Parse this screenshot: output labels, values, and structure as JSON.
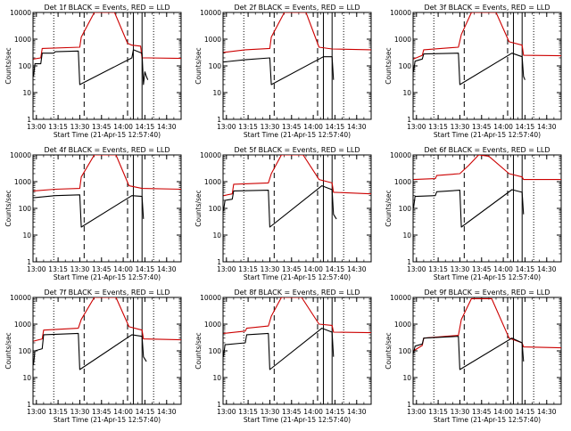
{
  "chart_data": [
    {
      "type": "line",
      "title": "Det 1f BLACK = Events, RED = LLD",
      "xlabel": "Start Time (21-Apr-15 12:57:40)",
      "ylabel": "Counts/sec",
      "x_ticks": [
        "13:00",
        "13:15",
        "13:30",
        "13:45",
        "14:00",
        "14:15",
        "14:30"
      ],
      "y_ticks": [
        "1",
        "10",
        "100",
        "1000",
        "10000"
      ],
      "ylim": [
        1,
        10000
      ],
      "y_scale": "log",
      "series": [
        {
          "color": "#000000",
          "points": [
            [
              "12:58",
              40
            ],
            [
              "12:59",
              120
            ],
            [
              "13:03",
              120
            ],
            [
              "13:04",
              300
            ],
            [
              "13:12",
              300
            ],
            [
              "13:13",
              340
            ],
            [
              "13:29",
              360
            ],
            [
              "13:30",
              20
            ],
            [
              "14:06",
              200
            ],
            [
              "14:07",
              400
            ],
            [
              "14:13",
              300
            ],
            [
              "14:14",
              20
            ],
            [
              "14:15",
              60
            ],
            [
              "14:16",
              40
            ],
            [
              "14:17",
              30
            ]
          ]
        },
        {
          "color": "#cc0000",
          "points": [
            [
              "12:58",
              180
            ],
            [
              "13:03",
              200
            ],
            [
              "13:04",
              450
            ],
            [
              "13:30",
              500
            ],
            [
              "13:31",
              1200
            ],
            [
              "13:40",
              10000
            ],
            [
              "13:54",
              10000
            ],
            [
              "14:03",
              700
            ],
            [
              "14:06",
              600
            ],
            [
              "14:12",
              550
            ],
            [
              "14:13",
              200
            ],
            [
              "14:17",
              200
            ],
            [
              "14:40",
              190
            ]
          ]
        }
      ]
    },
    {
      "type": "line",
      "title": "Det 2f BLACK = Events, RED = LLD",
      "xlabel": "Start Time (21-Apr-15 12:57:40)",
      "ylabel": "Counts/sec",
      "x_ticks": [
        "13:00",
        "13:15",
        "13:30",
        "13:45",
        "14:00",
        "14:15",
        "14:30"
      ],
      "y_ticks": [
        "1",
        "10",
        "100",
        "1000",
        "10000"
      ],
      "ylim": [
        1,
        10000
      ],
      "y_scale": "log",
      "series": [
        {
          "color": "#000000",
          "points": [
            [
              "12:58",
              140
            ],
            [
              "13:13",
              170
            ],
            [
              "13:30",
              200
            ],
            [
              "13:31",
              20
            ],
            [
              "14:07",
              220
            ],
            [
              "14:13",
              220
            ],
            [
              "14:14",
              30
            ]
          ]
        },
        {
          "color": "#cc0000",
          "points": [
            [
              "12:58",
              320
            ],
            [
              "13:13",
              400
            ],
            [
              "13:30",
              450
            ],
            [
              "13:31",
              1200
            ],
            [
              "13:40",
              10000
            ],
            [
              "13:55",
              10000
            ],
            [
              "14:04",
              500
            ],
            [
              "14:13",
              430
            ],
            [
              "14:40",
              400
            ]
          ]
        }
      ]
    },
    {
      "type": "line",
      "title": "Det 3f BLACK = Events, RED = LLD",
      "xlabel": "Start Time (21-Apr-15 12:57:40)",
      "ylabel": "Counts/sec",
      "x_ticks": [
        "13:00",
        "13:15",
        "13:30",
        "13:45",
        "14:00",
        "14:15",
        "14:30"
      ],
      "y_ticks": [
        "1",
        "10",
        "100",
        "1000",
        "10000"
      ],
      "ylim": [
        1,
        10000
      ],
      "y_scale": "log",
      "series": [
        {
          "color": "#000000",
          "points": [
            [
              "12:58",
              60
            ],
            [
              "12:59",
              150
            ],
            [
              "13:04",
              180
            ],
            [
              "13:05",
              280
            ],
            [
              "13:29",
              300
            ],
            [
              "13:30",
              20
            ],
            [
              "14:06",
              300
            ],
            [
              "14:13",
              220
            ],
            [
              "14:14",
              40
            ],
            [
              "14:15",
              30
            ]
          ]
        },
        {
          "color": "#cc0000",
          "points": [
            [
              "12:58",
              180
            ],
            [
              "13:04",
              250
            ],
            [
              "13:05",
              400
            ],
            [
              "13:29",
              500
            ],
            [
              "13:31",
              1500
            ],
            [
              "13:38",
              10000
            ],
            [
              "13:55",
              10000
            ],
            [
              "14:04",
              800
            ],
            [
              "14:13",
              600
            ],
            [
              "14:14",
              250
            ],
            [
              "14:40",
              240
            ]
          ]
        }
      ]
    },
    {
      "type": "line",
      "title": "Det 4f BLACK = Events, RED = LLD",
      "xlabel": "Start Time (21-Apr-15 12:57:40)",
      "ylabel": "Counts/sec",
      "x_ticks": [
        "13:00",
        "13:15",
        "13:30",
        "13:45",
        "14:00",
        "14:15",
        "14:30"
      ],
      "y_ticks": [
        "1",
        "10",
        "100",
        "1000",
        "10000"
      ],
      "ylim": [
        1,
        10000
      ],
      "y_scale": "log",
      "series": [
        {
          "color": "#000000",
          "points": [
            [
              "12:58",
              250
            ],
            [
              "13:13",
              300
            ],
            [
              "13:30",
              320
            ],
            [
              "13:31",
              20
            ],
            [
              "14:06",
              300
            ],
            [
              "14:13",
              280
            ],
            [
              "14:14",
              40
            ]
          ]
        },
        {
          "color": "#cc0000",
          "points": [
            [
              "12:58",
              450
            ],
            [
              "13:13",
              520
            ],
            [
              "13:30",
              560
            ],
            [
              "13:31",
              1500
            ],
            [
              "13:40",
              10000
            ],
            [
              "13:55",
              10000
            ],
            [
              "14:04",
              700
            ],
            [
              "14:13",
              560
            ],
            [
              "14:40",
              520
            ]
          ]
        }
      ]
    },
    {
      "type": "line",
      "title": "Det 5f BLACK = Events, RED = LLD",
      "xlabel": "Start Time (21-Apr-15 12:57:40)",
      "ylabel": "Counts/sec",
      "x_ticks": [
        "13:00",
        "13:15",
        "13:30",
        "13:45",
        "14:00",
        "14:15",
        "14:30"
      ],
      "y_ticks": [
        "1",
        "10",
        "100",
        "1000",
        "10000"
      ],
      "ylim": [
        1,
        10000
      ],
      "y_scale": "log",
      "series": [
        {
          "color": "#000000",
          "points": [
            [
              "12:58",
              80
            ],
            [
              "12:59",
              200
            ],
            [
              "13:04",
              220
            ],
            [
              "13:05",
              450
            ],
            [
              "13:29",
              480
            ],
            [
              "13:30",
              20
            ],
            [
              "14:06",
              700
            ],
            [
              "14:13",
              500
            ],
            [
              "14:14",
              60
            ],
            [
              "14:16",
              40
            ]
          ]
        },
        {
          "color": "#cc0000",
          "points": [
            [
              "12:58",
              300
            ],
            [
              "13:04",
              350
            ],
            [
              "13:05",
              800
            ],
            [
              "13:29",
              900
            ],
            [
              "13:31",
              2000
            ],
            [
              "13:38",
              10000
            ],
            [
              "13:53",
              10000
            ],
            [
              "14:04",
              1200
            ],
            [
              "14:13",
              900
            ],
            [
              "14:14",
              400
            ],
            [
              "14:40",
              350
            ]
          ]
        }
      ]
    },
    {
      "type": "line",
      "title": "Det 6f BLACK = Events, RED = LLD",
      "xlabel": "Start Time (21-Apr-15 12:57:40)",
      "ylabel": "Counts/sec",
      "x_ticks": [
        "13:00",
        "13:15",
        "13:30",
        "13:45",
        "14:00",
        "14:15",
        "14:30"
      ],
      "y_ticks": [
        "1",
        "10",
        "100",
        "1000",
        "10000"
      ],
      "ylim": [
        1,
        10000
      ],
      "y_scale": "log",
      "series": [
        {
          "color": "#000000",
          "points": [
            [
              "12:58",
              100
            ],
            [
              "12:59",
              280
            ],
            [
              "13:13",
              300
            ],
            [
              "13:14",
              420
            ],
            [
              "13:30",
              480
            ],
            [
              "13:31",
              20
            ],
            [
              "14:06",
              500
            ],
            [
              "14:13",
              400
            ],
            [
              "14:14",
              60
            ]
          ]
        },
        {
          "color": "#cc0000",
          "points": [
            [
              "12:58",
              1200
            ],
            [
              "13:13",
              1300
            ],
            [
              "13:14",
              1700
            ],
            [
              "13:30",
              2000
            ],
            [
              "13:36",
              4000
            ],
            [
              "13:43",
              10000
            ],
            [
              "13:50",
              9000
            ],
            [
              "14:04",
              2000
            ],
            [
              "14:13",
              1500
            ],
            [
              "14:14",
              1200
            ],
            [
              "14:40",
              1200
            ]
          ]
        }
      ]
    },
    {
      "type": "line",
      "title": "Det 7f BLACK = Events, RED = LLD",
      "xlabel": "Start Time (21-Apr-15 12:57:40)",
      "ylabel": "Counts/sec",
      "x_ticks": [
        "13:00",
        "13:15",
        "13:30",
        "13:45",
        "14:00",
        "14:15",
        "14:30"
      ],
      "y_ticks": [
        "1",
        "10",
        "100",
        "1000",
        "10000"
      ],
      "ylim": [
        1,
        10000
      ],
      "y_scale": "log",
      "series": [
        {
          "color": "#000000",
          "points": [
            [
              "12:58",
              30
            ],
            [
              "12:59",
              100
            ],
            [
              "13:04",
              120
            ],
            [
              "13:05",
              400
            ],
            [
              "13:29",
              450
            ],
            [
              "13:30",
              20
            ],
            [
              "14:06",
              400
            ],
            [
              "14:13",
              350
            ],
            [
              "14:14",
              60
            ],
            [
              "14:16",
              40
            ]
          ]
        },
        {
          "color": "#cc0000",
          "points": [
            [
              "12:58",
              230
            ],
            [
              "13:04",
              280
            ],
            [
              "13:05",
              600
            ],
            [
              "13:29",
              700
            ],
            [
              "13:31",
              1500
            ],
            [
              "13:40",
              10000
            ],
            [
              "13:55",
              10000
            ],
            [
              "14:04",
              800
            ],
            [
              "14:13",
              600
            ],
            [
              "14:14",
              280
            ],
            [
              "14:40",
              260
            ]
          ]
        }
      ]
    },
    {
      "type": "line",
      "title": "Det 8f BLACK = Events, RED = LLD",
      "xlabel": "Start Time (21-Apr-15 12:57:40)",
      "ylabel": "Counts/sec",
      "x_ticks": [
        "13:00",
        "13:15",
        "13:30",
        "13:45",
        "14:00",
        "14:15",
        "14:30"
      ],
      "y_ticks": [
        "1",
        "10",
        "100",
        "1000",
        "10000"
      ],
      "ylim": [
        1,
        10000
      ],
      "y_scale": "log",
      "series": [
        {
          "color": "#000000",
          "points": [
            [
              "12:58",
              60
            ],
            [
              "12:59",
              170
            ],
            [
              "13:13",
              200
            ],
            [
              "13:14",
              400
            ],
            [
              "13:29",
              450
            ],
            [
              "13:30",
              20
            ],
            [
              "14:06",
              700
            ],
            [
              "14:13",
              500
            ],
            [
              "14:14",
              60
            ]
          ]
        },
        {
          "color": "#cc0000",
          "points": [
            [
              "12:58",
              450
            ],
            [
              "13:13",
              550
            ],
            [
              "13:14",
              700
            ],
            [
              "13:29",
              850
            ],
            [
              "13:31",
              2000
            ],
            [
              "13:38",
              10000
            ],
            [
              "13:52",
              10000
            ],
            [
              "14:04",
              1000
            ],
            [
              "14:13",
              900
            ],
            [
              "14:14",
              500
            ],
            [
              "14:40",
              480
            ]
          ]
        }
      ]
    },
    {
      "type": "line",
      "title": "Det 9f BLACK = Events, RED = LLD",
      "xlabel": "Start Time (21-Apr-15 12:57:40)",
      "ylabel": "Counts/sec",
      "x_ticks": [
        "13:00",
        "13:15",
        "13:30",
        "13:45",
        "14:00",
        "14:15",
        "14:30"
      ],
      "y_ticks": [
        "1",
        "10",
        "100",
        "1000",
        "10000"
      ],
      "ylim": [
        1,
        10000
      ],
      "y_scale": "log",
      "series": [
        {
          "color": "#000000",
          "points": [
            [
              "12:58",
              80
            ],
            [
              "12:59",
              150
            ],
            [
              "13:04",
              180
            ],
            [
              "13:05",
              300
            ],
            [
              "13:29",
              350
            ],
            [
              "13:30",
              20
            ],
            [
              "14:06",
              300
            ],
            [
              "14:13",
              200
            ],
            [
              "14:14",
              40
            ]
          ]
        },
        {
          "color": "#cc0000",
          "points": [
            [
              "12:58",
              100
            ],
            [
              "13:04",
              160
            ],
            [
              "13:05",
              300
            ],
            [
              "13:29",
              380
            ],
            [
              "13:31",
              1500
            ],
            [
              "13:38",
              9000
            ],
            [
              "13:52",
              9000
            ],
            [
              "14:04",
              300
            ],
            [
              "14:13",
              200
            ],
            [
              "14:14",
              140
            ],
            [
              "14:40",
              130
            ]
          ]
        }
      ]
    }
  ],
  "markers": {
    "dotted": [
      "13:12",
      "14:21"
    ],
    "dashed": [
      "13:33",
      "14:03"
    ],
    "solid": [
      "14:07",
      "14:13"
    ],
    "xlim": [
      "12:57:40",
      "14:40"
    ]
  }
}
